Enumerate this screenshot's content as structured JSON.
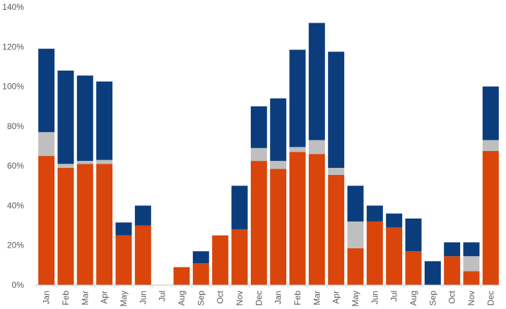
{
  "chart_data": {
    "type": "bar",
    "stacked": true,
    "title": "",
    "xlabel": "",
    "ylabel": "",
    "ylim": [
      0,
      140
    ],
    "y_ticks": [
      "0%",
      "20%",
      "40%",
      "60%",
      "80%",
      "100%",
      "120%",
      "140%"
    ],
    "y_tick_values": [
      0,
      20,
      40,
      60,
      80,
      100,
      120,
      140
    ],
    "grid": false,
    "legend": "none",
    "categories": [
      "Jan",
      "Feb",
      "Mar",
      "Apr",
      "May",
      "Jun",
      "Jul",
      "Aug",
      "Sep",
      "Oct",
      "Nov",
      "Dec",
      "Jan",
      "Feb",
      "Mar",
      "Apr",
      "May",
      "Jun",
      "Jul",
      "Aug",
      "Sep",
      "Oct",
      "Nov",
      "Dec"
    ],
    "series": [
      {
        "color": "#d9450a",
        "values": [
          65,
          59,
          61,
          61,
          25,
          30,
          0,
          9,
          11,
          25,
          28,
          62.5,
          58.5,
          67,
          66,
          55.5,
          18.5,
          32,
          29,
          17,
          0,
          14.5,
          7,
          67.5
        ]
      },
      {
        "color": "#bfbfbf",
        "values": [
          12,
          2,
          1.5,
          2,
          0,
          0,
          0,
          0,
          0,
          0,
          0,
          6.5,
          4,
          2.5,
          7,
          3.5,
          13.5,
          0,
          0,
          0,
          0,
          0,
          7.5,
          5.5
        ]
      },
      {
        "color": "#0b3d7d",
        "values": [
          42,
          47,
          43,
          39.5,
          6.5,
          10,
          0,
          0,
          6,
          0,
          22,
          21,
          31.5,
          49,
          59,
          58.5,
          18,
          8,
          7,
          16.5,
          12,
          7,
          7,
          27
        ]
      }
    ]
  }
}
